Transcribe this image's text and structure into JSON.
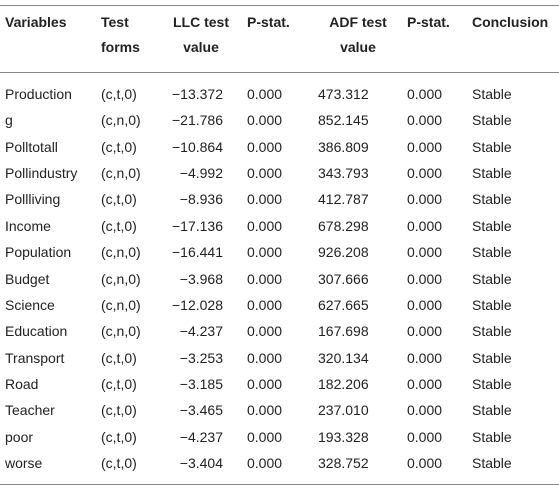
{
  "table": {
    "header": [
      "Variables",
      "Test forms",
      "LLC test value",
      "P-stat.",
      "ADF test value",
      "P-stat.",
      "Conclusion"
    ],
    "rows": [
      [
        "Production",
        "(c,t,0)",
        "−13.372",
        "0.000",
        "473.312",
        "0.000",
        "Stable"
      ],
      [
        "g",
        "(c,n,0)",
        "−21.786",
        "0.000",
        "852.145",
        "0.000",
        "Stable"
      ],
      [
        "Polltotall",
        "(c,t,0)",
        "−10.864",
        "0.000",
        "386.809",
        "0.000",
        "Stable"
      ],
      [
        "Pollindustry",
        "(c,n,0)",
        "−4.992",
        "0.000",
        "343.793",
        "0.000",
        "Stable"
      ],
      [
        "Pollliving",
        "(c,t,0)",
        "−8.936",
        "0.000",
        "412.787",
        "0.000",
        "Stable"
      ],
      [
        "Income",
        "(c,t,0)",
        "−17.136",
        "0.000",
        "678.298",
        "0.000",
        "Stable"
      ],
      [
        "Population",
        "(c,n,0)",
        "−16.441",
        "0.000",
        "926.208",
        "0.000",
        "Stable"
      ],
      [
        "Budget",
        "(c,n,0)",
        "−3.968",
        "0.000",
        "307.666",
        "0.000",
        "Stable"
      ],
      [
        "Science",
        "(c,n,0)",
        "−12.028",
        "0.000",
        "627.665",
        "0.000",
        "Stable"
      ],
      [
        "Education",
        "(c,n,0)",
        "−4.237",
        "0.000",
        "167.698",
        "0.000",
        "Stable"
      ],
      [
        "Transport",
        "(c,t,0)",
        "−3.253",
        "0.000",
        "320.134",
        "0.000",
        "Stable"
      ],
      [
        "Road",
        "(c,t,0)",
        "−3.185",
        "0.000",
        "182.206",
        "0.000",
        "Stable"
      ],
      [
        "Teacher",
        "(c,t,0)",
        "−3.465",
        "0.000",
        "237.010",
        "0.000",
        "Stable"
      ],
      [
        "poor",
        "(c,t,0)",
        "−4.237",
        "0.000",
        "193.328",
        "0.000",
        "Stable"
      ],
      [
        "worse",
        "(c,t,0)",
        "−3.404",
        "0.000",
        "328.752",
        "0.000",
        "Stable"
      ]
    ]
  }
}
